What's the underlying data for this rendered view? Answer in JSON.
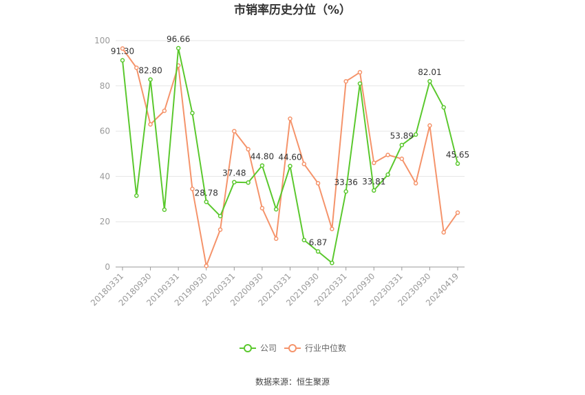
{
  "chart_data": {
    "type": "line",
    "title": "市销率历史分位（%）",
    "source": "数据来源：恒生聚源",
    "ylim": [
      0,
      100
    ],
    "yticks": [
      "0",
      "20",
      "40",
      "60",
      "80",
      "100"
    ],
    "x": [
      "20180331",
      "20180630",
      "20180930",
      "20181231",
      "20190331",
      "20190630",
      "20190930",
      "20191231",
      "20200331",
      "20200630",
      "20200930",
      "20201231",
      "20210331",
      "20210630",
      "20210930",
      "20211231",
      "20220331",
      "20220630",
      "20220930",
      "20221231",
      "20230331",
      "20230630",
      "20230930",
      "20231231",
      "20240419"
    ],
    "xtick_labels": [
      "20180331",
      "20180930",
      "20190331",
      "20190930",
      "20200331",
      "20200930",
      "20210331",
      "20210930",
      "20220331",
      "20220930",
      "20230331",
      "20230930",
      "20240419"
    ],
    "series": [
      {
        "name": "公司",
        "color": "#5ac82d",
        "values": [
          91.3,
          31.5,
          82.8,
          25.3,
          96.66,
          68.0,
          28.78,
          22.5,
          37.48,
          37.3,
          44.8,
          25.5,
          44.6,
          11.9,
          6.87,
          1.8,
          33.36,
          81.0,
          33.81,
          40.8,
          53.89,
          58.5,
          82.01,
          70.5,
          45.65
        ]
      },
      {
        "name": "行业中位数",
        "color": "#f5936a",
        "values": [
          96.5,
          88.0,
          63.0,
          69.0,
          89.0,
          34.5,
          0.5,
          16.5,
          60.0,
          52.0,
          26.0,
          12.5,
          65.5,
          45.5,
          37.0,
          16.8,
          82.0,
          86.0,
          46.0,
          49.5,
          47.8,
          37.0,
          62.5,
          15.3,
          24.0
        ]
      }
    ],
    "data_labels": [
      {
        "index": 0,
        "text": "91.30"
      },
      {
        "index": 2,
        "text": "82.80"
      },
      {
        "index": 4,
        "text": "96.66"
      },
      {
        "index": 6,
        "text": "28.78"
      },
      {
        "index": 8,
        "text": "37.48"
      },
      {
        "index": 10,
        "text": "44.80"
      },
      {
        "index": 12,
        "text": "44.60"
      },
      {
        "index": 14,
        "text": "6.87"
      },
      {
        "index": 16,
        "text": "33.36"
      },
      {
        "index": 18,
        "text": "33.81"
      },
      {
        "index": 20,
        "text": "53.89"
      },
      {
        "index": 22,
        "text": "82.01"
      },
      {
        "index": 24,
        "text": "45.65"
      }
    ],
    "legend_position": "bottom-center",
    "grid": true
  }
}
